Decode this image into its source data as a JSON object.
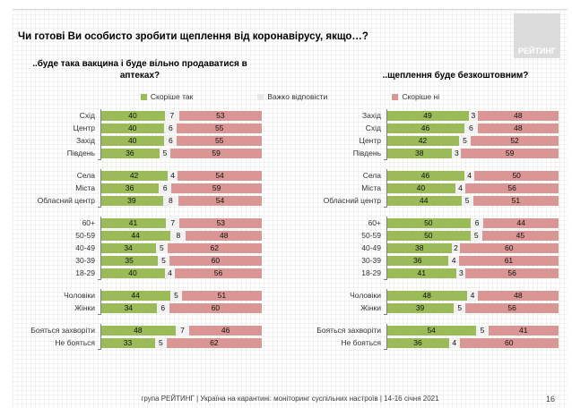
{
  "slide": {
    "title": "Чи готові Ви особисто зробити щеплення від коронавірусу, якщо…?",
    "logo_text": "РЕЙТИНГ",
    "footer_text": "група РЕЙТИНГ | Україна на карантині: моніторинг суспільних настроїв | 14-16 січня 2021",
    "page_number": "16"
  },
  "legend": {
    "items": [
      {
        "label": "Скоріше так",
        "color": "#9bbb59"
      },
      {
        "label": "Важко відповісти",
        "color": "#e9e9e9"
      },
      {
        "label": "Скоріше ні",
        "color": "#d99694"
      }
    ]
  },
  "chart_data": [
    {
      "type": "bar",
      "orientation": "horizontal",
      "stacked": true,
      "title": "..буде така вакцина і буде вільно продаватися в аптеках?",
      "series_names": [
        "Скоріше так",
        "Важко відповісти",
        "Скоріше ні"
      ],
      "colors": [
        "#9bbb59",
        "#f1f1f1",
        "#d99694"
      ],
      "x_max": 100,
      "groups": [
        {
          "rows": [
            {
              "label": "Схід",
              "values": [
                40,
                7,
                53
              ]
            },
            {
              "label": "Центр",
              "values": [
                40,
                6,
                55
              ]
            },
            {
              "label": "Захід",
              "values": [
                40,
                6,
                55
              ]
            },
            {
              "label": "Південь",
              "values": [
                36,
                5,
                59
              ]
            }
          ]
        },
        {
          "rows": [
            {
              "label": "Села",
              "values": [
                42,
                4,
                54
              ]
            },
            {
              "label": "Міста",
              "values": [
                36,
                6,
                59
              ]
            },
            {
              "label": "Обласний центр",
              "values": [
                39,
                8,
                54
              ]
            }
          ]
        },
        {
          "rows": [
            {
              "label": "60+",
              "values": [
                41,
                7,
                53
              ]
            },
            {
              "label": "50-59",
              "values": [
                44,
                8,
                48
              ]
            },
            {
              "label": "40-49",
              "values": [
                34,
                5,
                62
              ]
            },
            {
              "label": "30-39",
              "values": [
                35,
                5,
                60
              ]
            },
            {
              "label": "18-29",
              "values": [
                40,
                4,
                56
              ]
            }
          ]
        },
        {
          "rows": [
            {
              "label": "Чоловіки",
              "values": [
                44,
                5,
                51
              ]
            },
            {
              "label": "Жінки",
              "values": [
                34,
                6,
                60
              ]
            }
          ]
        },
        {
          "rows": [
            {
              "label": "Бояться захворіти",
              "values": [
                48,
                7,
                46
              ]
            },
            {
              "label": "Не бояться",
              "values": [
                33,
                5,
                62
              ]
            }
          ]
        }
      ]
    },
    {
      "type": "bar",
      "orientation": "horizontal",
      "stacked": true,
      "title": "..щеплення буде безкоштовним?",
      "series_names": [
        "Скоріше так",
        "Важко відповісти",
        "Скоріше ні"
      ],
      "colors": [
        "#9bbb59",
        "#f1f1f1",
        "#d99694"
      ],
      "x_max": 100,
      "groups": [
        {
          "rows": [
            {
              "label": "Захід",
              "values": [
                49,
                3,
                48
              ]
            },
            {
              "label": "Схід",
              "values": [
                46,
                6,
                48
              ]
            },
            {
              "label": "Центр",
              "values": [
                42,
                5,
                52
              ]
            },
            {
              "label": "Південь",
              "values": [
                38,
                3,
                59
              ]
            }
          ]
        },
        {
          "rows": [
            {
              "label": "Села",
              "values": [
                46,
                4,
                50
              ]
            },
            {
              "label": "Міста",
              "values": [
                40,
                4,
                56
              ]
            },
            {
              "label": "Обласний центр",
              "values": [
                44,
                5,
                51
              ]
            }
          ]
        },
        {
          "rows": [
            {
              "label": "60+",
              "values": [
                50,
                6,
                44
              ]
            },
            {
              "label": "50-59",
              "values": [
                50,
                5,
                45
              ]
            },
            {
              "label": "40-49",
              "values": [
                38,
                2,
                60
              ]
            },
            {
              "label": "30-39",
              "values": [
                36,
                4,
                61
              ]
            },
            {
              "label": "18-29",
              "values": [
                41,
                3,
                56
              ]
            }
          ]
        },
        {
          "rows": [
            {
              "label": "Чоловіки",
              "values": [
                48,
                4,
                48
              ]
            },
            {
              "label": "Жінки",
              "values": [
                39,
                5,
                56
              ]
            }
          ]
        },
        {
          "rows": [
            {
              "label": "Бояться захворіти",
              "values": [
                54,
                5,
                41
              ]
            },
            {
              "label": "Не бояться",
              "values": [
                36,
                4,
                60
              ]
            }
          ]
        }
      ]
    }
  ]
}
